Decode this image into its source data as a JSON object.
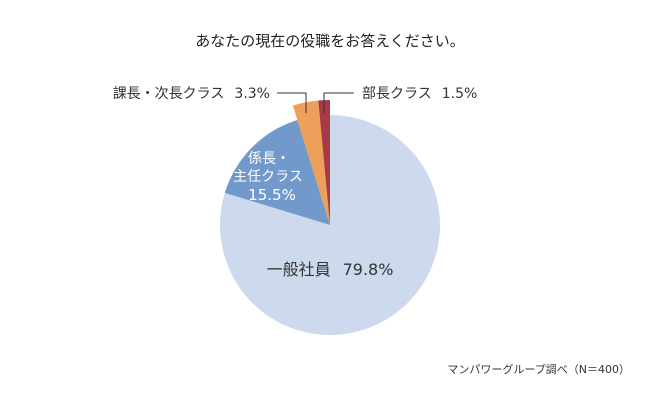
{
  "chart_data": {
    "type": "pie",
    "title": "あなたの現在の役職をお答えください。",
    "source": "マンパワーグループ調べ（N＝400）",
    "slices": [
      {
        "name": "一般社員",
        "value": 79.8,
        "label": "79.8%",
        "color": "#cdd9ec"
      },
      {
        "name": "係長・主任クラス",
        "name_lines": [
          "係長・",
          "主任クラス"
        ],
        "value": 15.5,
        "label": "15.5%",
        "color": "#7299cb"
      },
      {
        "name": "課長・次長クラス",
        "value": 3.3,
        "label": "3.3%",
        "color": "#ee9f5a"
      },
      {
        "name": "部長クラス",
        "value": 1.5,
        "label": "1.5%",
        "color": "#a63a47"
      }
    ],
    "start": "top",
    "direction": "clockwise"
  }
}
